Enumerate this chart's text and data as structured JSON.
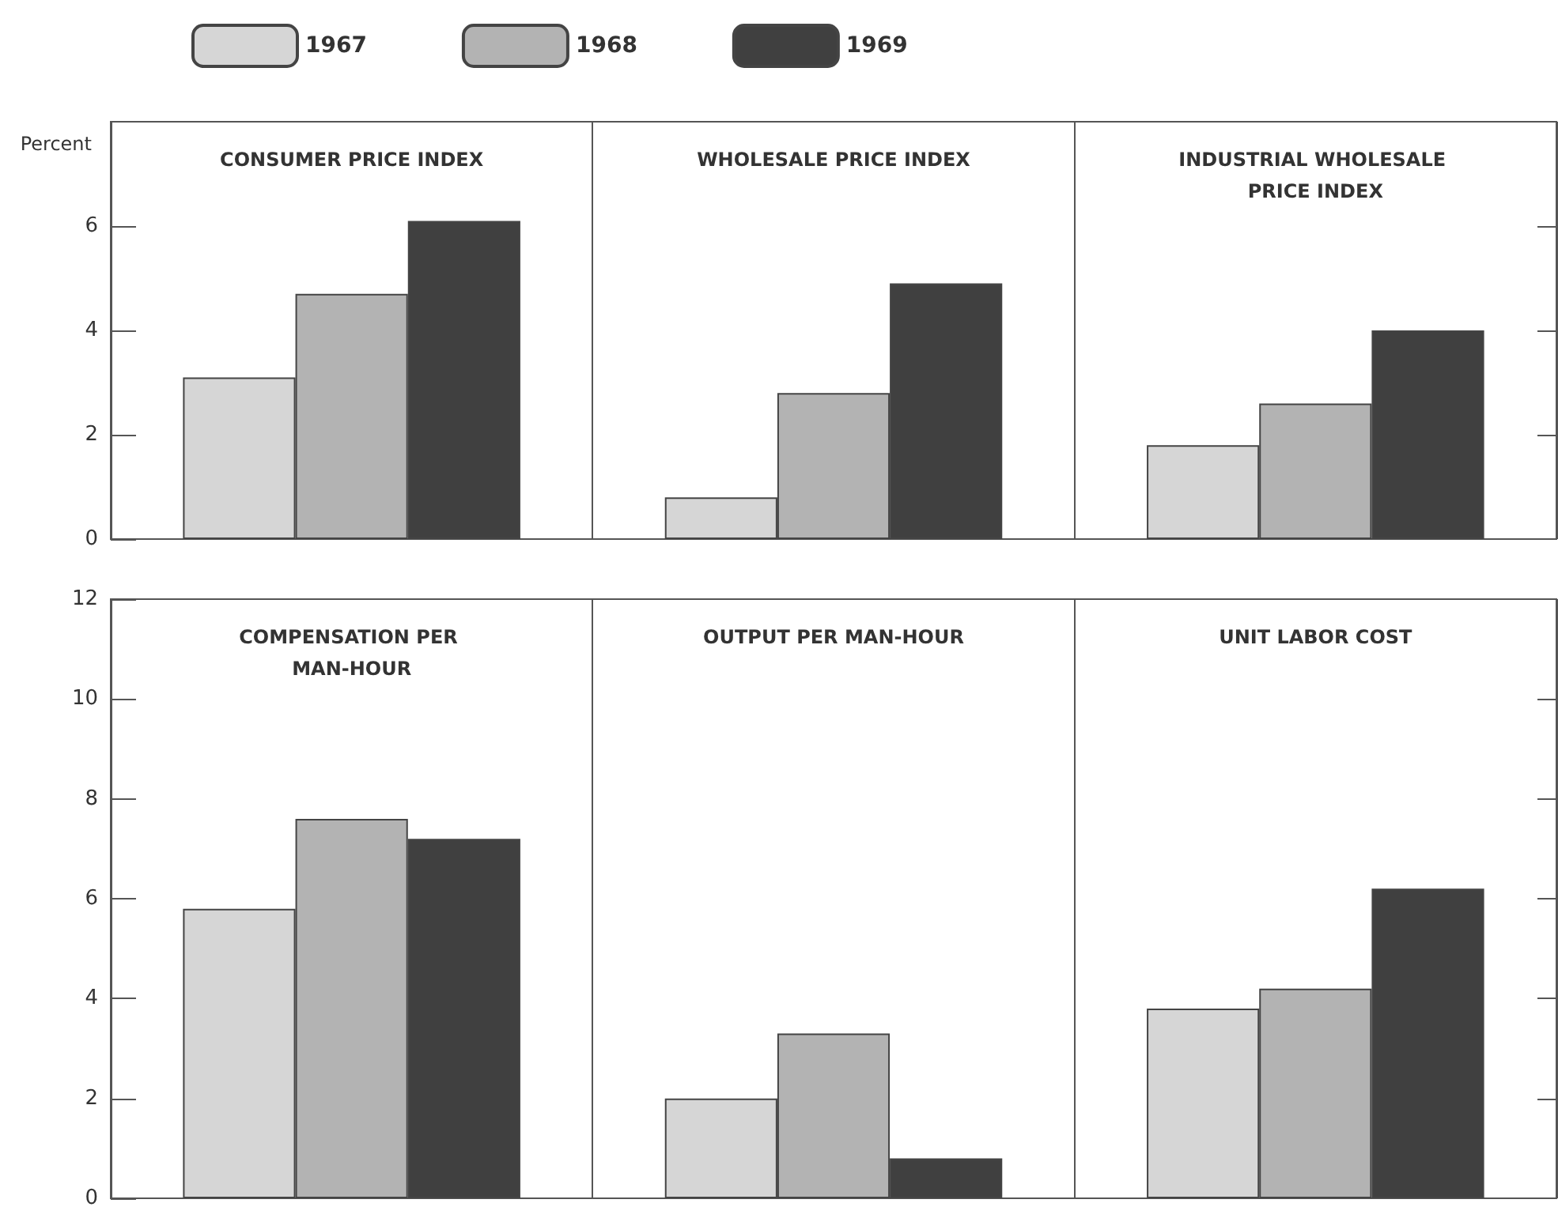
{
  "chart_data": [
    {
      "type": "bar",
      "ylabel": "Percent",
      "categories": [
        "CONSUMER PRICE INDEX",
        "WHOLESALE PRICE INDEX",
        "INDUSTRIAL WHOLESALE PRICE INDEX"
      ],
      "legend": "top",
      "grid": "x",
      "ylim": [
        0,
        8
      ],
      "yticks": [
        0,
        2,
        4,
        6
      ],
      "series": [
        {
          "name": "1967",
          "color": "#d6d6d6",
          "values": [
            3.1,
            0.8,
            1.8
          ]
        },
        {
          "name": "1968",
          "color": "#b3b3b3",
          "values": [
            4.7,
            2.8,
            2.6
          ]
        },
        {
          "name": "1969",
          "color": "#404040",
          "values": [
            6.1,
            4.9,
            4.0
          ]
        }
      ]
    },
    {
      "type": "bar",
      "categories": [
        "COMPENSATION PER MAN-HOUR",
        "OUTPUT PER MAN-HOUR",
        "UNIT LABOR COST"
      ],
      "grid": "x",
      "ylim": [
        0,
        12
      ],
      "yticks": [
        0,
        2,
        4,
        6,
        8,
        10,
        12
      ],
      "series": [
        {
          "color": "#d6d6d6",
          "values": [
            5.8,
            2.0,
            3.8
          ]
        },
        {
          "color": "#b3b3b3",
          "values": [
            7.6,
            3.3,
            4.2
          ]
        },
        {
          "color": "#404040",
          "values": [
            7.2,
            0.8,
            6.2
          ]
        }
      ]
    }
  ]
}
